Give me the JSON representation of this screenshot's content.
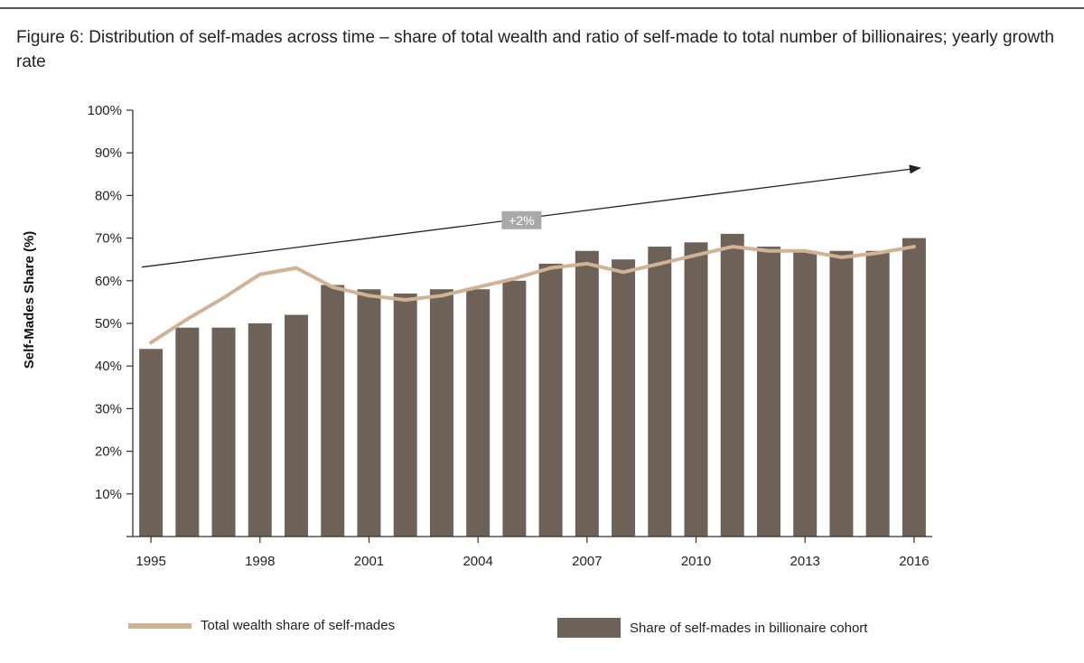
{
  "caption": "Figure 6: Distribution of self-mades across time – share of total wealth and ratio of self-made to total number of billionaires; yearly growth rate",
  "colors": {
    "bar": "#6e6258",
    "line": "#d2b295",
    "axis": "#333333",
    "trend": "#222222",
    "badge": "#a9a9a9"
  },
  "chart_data": {
    "type": "bar",
    "ylabel": "Self-Mades Share (%)",
    "ylim": [
      0,
      100
    ],
    "yticks": [
      "10%",
      "20%",
      "30%",
      "40%",
      "50%",
      "60%",
      "70%",
      "80%",
      "90%",
      "100%"
    ],
    "ytick_values": [
      10,
      20,
      30,
      40,
      50,
      60,
      70,
      80,
      90,
      100
    ],
    "categories": [
      "1995",
      "1996",
      "1997",
      "1998",
      "1999",
      "2000",
      "2001",
      "2002",
      "2003",
      "2004",
      "2005",
      "2006",
      "2007",
      "2008",
      "2009",
      "2010",
      "2011",
      "2012",
      "2013",
      "2014",
      "2015",
      "2016"
    ],
    "xtick_labels": [
      "1995",
      "1998",
      "2001",
      "2004",
      "2007",
      "2010",
      "2013",
      "2016"
    ],
    "series": [
      {
        "name": "Share of self-mades in billionaire cohort",
        "kind": "bar",
        "values": [
          44,
          49,
          49,
          50,
          52,
          59,
          58,
          57,
          58,
          58,
          60,
          64,
          67,
          65,
          68,
          69,
          71,
          68,
          67,
          67,
          67,
          70
        ]
      },
      {
        "name": "Total wealth share of self-mades",
        "kind": "line",
        "values": [
          45.5,
          51,
          56,
          61.5,
          63,
          58.5,
          56.5,
          55.5,
          56.5,
          58.5,
          60.5,
          63,
          64,
          62,
          64,
          66,
          68,
          67,
          67,
          65.5,
          66.5,
          68
        ]
      }
    ],
    "annotation": {
      "label": "+2%",
      "trend_from": {
        "x": "1995",
        "y": 63.2
      },
      "trend_to": {
        "x": "2016",
        "y": 86.5
      },
      "label_at": {
        "x": "2005",
        "y": 74.2
      }
    },
    "legend": "bottom"
  },
  "legend": {
    "line_label": "Total wealth share of self-mades",
    "bar_label": "Share of self-mades in billionaire cohort"
  }
}
